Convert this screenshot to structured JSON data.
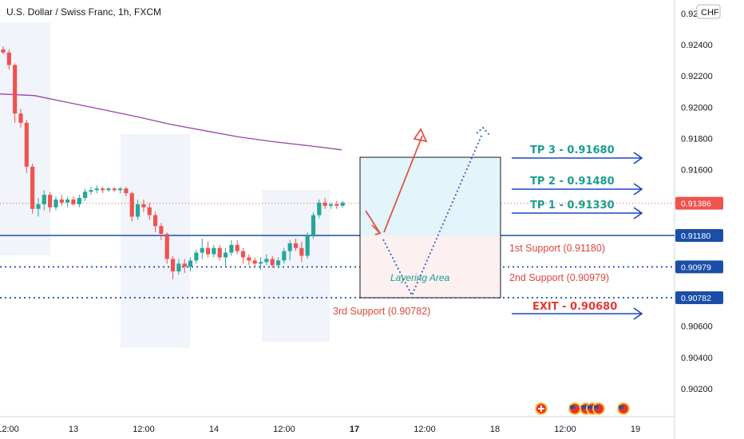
{
  "header": {
    "title": "U.S. Dollar / Swiss Franc, 1h, FXCM"
  },
  "currency_badge": "CHF",
  "colors": {
    "bull": "#26a69a",
    "bear": "#ef5350",
    "ma": "#a040b0",
    "support_line": "#1a4ea8",
    "tp_text": "#1a9e8f",
    "exit_text": "#e53935",
    "support_text": "#e0453c",
    "last_price_badge": "#ef5350",
    "level_badge": "#1a4ea8"
  },
  "chart_data": {
    "type": "candlestick",
    "instrument": "U.S. Dollar / Swiss Franc",
    "timeframe": "1h",
    "source": "FXCM",
    "x_tick_labels": [
      "12:00",
      "13",
      "12:00",
      "14",
      "12:00",
      "17",
      "12:00",
      "18",
      "12:00",
      "19"
    ],
    "y_tick_labels": [
      "0.92600",
      "0.92400",
      "0.92200",
      "0.92000",
      "0.91800",
      "0.91600",
      "0.90600",
      "0.90400",
      "0.90200"
    ],
    "ylim": [
      0.9004,
      0.9266
    ],
    "last_price": 0.91386,
    "last_price_label": "0.91386",
    "price_levels": [
      {
        "name": "1st Support",
        "value": 0.9118,
        "badge": "0.91180",
        "style": "solid"
      },
      {
        "name": "2nd Support",
        "value": 0.90979,
        "badge": "0.90979",
        "style": "dotted"
      },
      {
        "name": "3rd Support",
        "value": 0.90782,
        "badge": "0.90782",
        "style": "dotted"
      }
    ],
    "candles": [
      {
        "o": 0.9237,
        "h": 0.9239,
        "l": 0.9234,
        "c": 0.9235
      },
      {
        "o": 0.9235,
        "h": 0.9237,
        "l": 0.9224,
        "c": 0.9227
      },
      {
        "o": 0.9227,
        "h": 0.9228,
        "l": 0.919,
        "c": 0.9196
      },
      {
        "o": 0.9196,
        "h": 0.9199,
        "l": 0.9187,
        "c": 0.919
      },
      {
        "o": 0.919,
        "h": 0.9192,
        "l": 0.9158,
        "c": 0.9162
      },
      {
        "o": 0.9162,
        "h": 0.9164,
        "l": 0.9132,
        "c": 0.9135
      },
      {
        "o": 0.9135,
        "h": 0.9142,
        "l": 0.913,
        "c": 0.9138
      },
      {
        "o": 0.9138,
        "h": 0.9147,
        "l": 0.9134,
        "c": 0.9144
      },
      {
        "o": 0.9144,
        "h": 0.9146,
        "l": 0.9133,
        "c": 0.9136
      },
      {
        "o": 0.9136,
        "h": 0.9143,
        "l": 0.9134,
        "c": 0.9141
      },
      {
        "o": 0.9141,
        "h": 0.9144,
        "l": 0.9137,
        "c": 0.9139
      },
      {
        "o": 0.9139,
        "h": 0.9143,
        "l": 0.9136,
        "c": 0.9141
      },
      {
        "o": 0.9141,
        "h": 0.9143,
        "l": 0.9137,
        "c": 0.9138
      },
      {
        "o": 0.9138,
        "h": 0.9144,
        "l": 0.9136,
        "c": 0.9142
      },
      {
        "o": 0.9142,
        "h": 0.9148,
        "l": 0.914,
        "c": 0.9146
      },
      {
        "o": 0.9146,
        "h": 0.9149,
        "l": 0.9144,
        "c": 0.9147
      },
      {
        "o": 0.9147,
        "h": 0.915,
        "l": 0.9145,
        "c": 0.9148
      },
      {
        "o": 0.9148,
        "h": 0.9149,
        "l": 0.9145,
        "c": 0.9147
      },
      {
        "o": 0.9147,
        "h": 0.9149,
        "l": 0.9146,
        "c": 0.9148
      },
      {
        "o": 0.9148,
        "h": 0.9149,
        "l": 0.9146,
        "c": 0.9147
      },
      {
        "o": 0.9147,
        "h": 0.9149,
        "l": 0.9145,
        "c": 0.9148
      },
      {
        "o": 0.9148,
        "h": 0.9149,
        "l": 0.9143,
        "c": 0.9145
      },
      {
        "o": 0.9145,
        "h": 0.9146,
        "l": 0.9127,
        "c": 0.913
      },
      {
        "o": 0.913,
        "h": 0.9141,
        "l": 0.9128,
        "c": 0.9138
      },
      {
        "o": 0.9138,
        "h": 0.9141,
        "l": 0.9133,
        "c": 0.9136
      },
      {
        "o": 0.9136,
        "h": 0.9139,
        "l": 0.9128,
        "c": 0.9131
      },
      {
        "o": 0.9131,
        "h": 0.9133,
        "l": 0.912,
        "c": 0.9124
      },
      {
        "o": 0.9124,
        "h": 0.9126,
        "l": 0.9115,
        "c": 0.9119
      },
      {
        "o": 0.9119,
        "h": 0.912,
        "l": 0.91,
        "c": 0.9103
      },
      {
        "o": 0.9103,
        "h": 0.9105,
        "l": 0.909,
        "c": 0.9095
      },
      {
        "o": 0.9095,
        "h": 0.9103,
        "l": 0.9093,
        "c": 0.91
      },
      {
        "o": 0.91,
        "h": 0.9103,
        "l": 0.9094,
        "c": 0.9098
      },
      {
        "o": 0.9098,
        "h": 0.9104,
        "l": 0.9095,
        "c": 0.9102
      },
      {
        "o": 0.9102,
        "h": 0.9109,
        "l": 0.91,
        "c": 0.9107
      },
      {
        "o": 0.9107,
        "h": 0.9116,
        "l": 0.9103,
        "c": 0.911
      },
      {
        "o": 0.911,
        "h": 0.9114,
        "l": 0.9104,
        "c": 0.9106
      },
      {
        "o": 0.9106,
        "h": 0.9112,
        "l": 0.9104,
        "c": 0.911
      },
      {
        "o": 0.911,
        "h": 0.9112,
        "l": 0.9102,
        "c": 0.9104
      },
      {
        "o": 0.9104,
        "h": 0.911,
        "l": 0.9098,
        "c": 0.9107
      },
      {
        "o": 0.9107,
        "h": 0.9115,
        "l": 0.9105,
        "c": 0.9112
      },
      {
        "o": 0.9112,
        "h": 0.9115,
        "l": 0.9106,
        "c": 0.9108
      },
      {
        "o": 0.9108,
        "h": 0.911,
        "l": 0.91,
        "c": 0.9104
      },
      {
        "o": 0.9104,
        "h": 0.9106,
        "l": 0.9099,
        "c": 0.9102
      },
      {
        "o": 0.9102,
        "h": 0.9104,
        "l": 0.9098,
        "c": 0.91
      },
      {
        "o": 0.91,
        "h": 0.9104,
        "l": 0.9096,
        "c": 0.9101
      },
      {
        "o": 0.9101,
        "h": 0.9106,
        "l": 0.9099,
        "c": 0.9103
      },
      {
        "o": 0.9103,
        "h": 0.9105,
        "l": 0.9097,
        "c": 0.9099
      },
      {
        "o": 0.9099,
        "h": 0.9104,
        "l": 0.9097,
        "c": 0.9102
      },
      {
        "o": 0.9102,
        "h": 0.911,
        "l": 0.91,
        "c": 0.9108
      },
      {
        "o": 0.9108,
        "h": 0.9115,
        "l": 0.9102,
        "c": 0.9113
      },
      {
        "o": 0.9113,
        "h": 0.9116,
        "l": 0.9108,
        "c": 0.911
      },
      {
        "o": 0.911,
        "h": 0.9114,
        "l": 0.9101,
        "c": 0.9105
      },
      {
        "o": 0.9105,
        "h": 0.912,
        "l": 0.9103,
        "c": 0.9118
      },
      {
        "o": 0.9118,
        "h": 0.9133,
        "l": 0.9116,
        "c": 0.9131
      },
      {
        "o": 0.9131,
        "h": 0.9141,
        "l": 0.9129,
        "c": 0.9139
      },
      {
        "o": 0.9139,
        "h": 0.9142,
        "l": 0.9135,
        "c": 0.9137
      },
      {
        "o": 0.9137,
        "h": 0.9139,
        "l": 0.9135,
        "c": 0.9138
      },
      {
        "o": 0.9138,
        "h": 0.914,
        "l": 0.9135,
        "c": 0.9137
      },
      {
        "o": 0.9137,
        "h": 0.914,
        "l": 0.9136,
        "c": 0.9139
      }
    ],
    "moving_average": [
      0.92085,
      0.92075,
      0.9203,
      0.91985,
      0.9194,
      0.9189,
      0.9185,
      0.9181,
      0.9178,
      0.91755,
      0.91728
    ]
  },
  "annotations": {
    "take_profits": [
      {
        "label": "TP 3 - 0.91680",
        "value": 0.9168
      },
      {
        "label": "TP 2 - 0.91480",
        "value": 0.9148
      },
      {
        "label": "TP 1 - 0.91330",
        "value": 0.9133
      }
    ],
    "exit": {
      "label": "EXIT - 0.90680",
      "value": 0.9068
    },
    "supports": [
      {
        "label": "1st Support (0.91180)"
      },
      {
        "label": "2nd Support (0.90979)"
      },
      {
        "label": "3rd Support (0.90782)"
      }
    ],
    "layering_area": "Layering Area"
  },
  "event_icons": [
    "swiss-flag-icon",
    "us-flag-icon",
    "us-flag-icon",
    "us-flag-icon",
    "us-flag-icon",
    "us-flag-icon"
  ]
}
